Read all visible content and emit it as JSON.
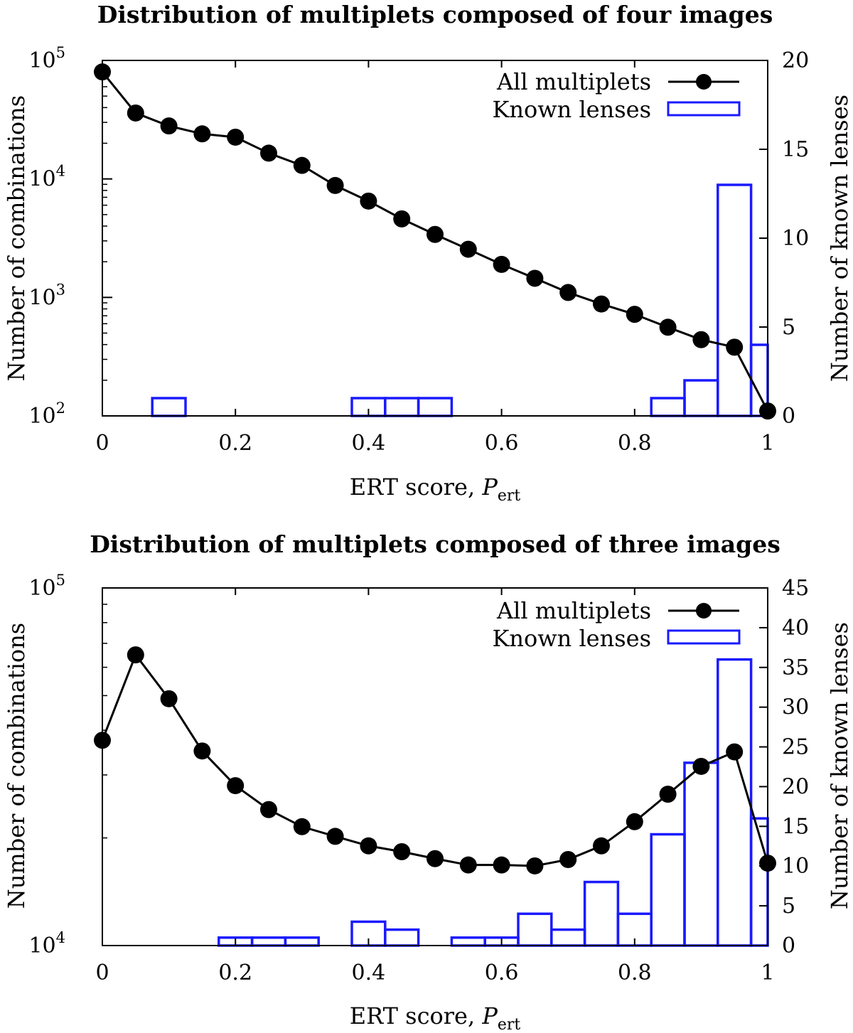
{
  "chart_data": [
    {
      "type": "line",
      "title": "Distribution of multiplets composed of four images",
      "xlabel": "ERT score, ",
      "xlabel_var": "P",
      "xlabel_sub": "ert",
      "ylabel": "Number of combinations",
      "y2label": "Number of known lenses",
      "x_ticks": [
        "0",
        "0.2",
        "0.4",
        "0.6",
        "0.8",
        "1"
      ],
      "y_ticks": [
        {
          "base": "10",
          "exp": "2"
        },
        {
          "base": "10",
          "exp": "3"
        },
        {
          "base": "10",
          "exp": "4"
        },
        {
          "base": "10",
          "exp": "5"
        }
      ],
      "y2_ticks": [
        "0",
        "5",
        "10",
        "15",
        "20"
      ],
      "xlim": [
        0,
        1
      ],
      "ylim": [
        100,
        100000
      ],
      "yscale": "log",
      "y2lim": [
        0,
        20
      ],
      "legend": {
        "placement": "top-right",
        "line_label": "All multiplets",
        "bar_label": "Known lenses"
      },
      "colors": {
        "line": "#000000",
        "bars": "#1a1aff"
      },
      "series": [
        {
          "name": "All multiplets",
          "kind": "line-points",
          "axis": "left",
          "x": [
            0,
            0.05,
            0.1,
            0.15,
            0.2,
            0.25,
            0.3,
            0.35,
            0.4,
            0.45,
            0.5,
            0.55,
            0.6,
            0.65,
            0.7,
            0.75,
            0.8,
            0.85,
            0.9,
            0.95,
            1.0
          ],
          "values": [
            80000,
            36000,
            28000,
            24000,
            22500,
            16500,
            13000,
            8800,
            6500,
            4600,
            3400,
            2550,
            1900,
            1450,
            1100,
            880,
            720,
            560,
            440,
            380,
            110
          ]
        },
        {
          "name": "Known lenses",
          "kind": "histogram",
          "axis": "right",
          "bin_width": 0.05,
          "x": [
            0.1,
            0.4,
            0.45,
            0.5,
            0.85,
            0.9,
            0.95,
            1.0
          ],
          "values": [
            1,
            1,
            1,
            1,
            1,
            2,
            13,
            4
          ]
        }
      ]
    },
    {
      "type": "line",
      "title": "Distribution of multiplets composed of three images",
      "xlabel": "ERT score, ",
      "xlabel_var": "P",
      "xlabel_sub": "ert",
      "ylabel": "Number of combinations",
      "y2label": "Number of known lenses",
      "x_ticks": [
        "0",
        "0.2",
        "0.4",
        "0.6",
        "0.8",
        "1"
      ],
      "y_ticks": [
        {
          "base": "10",
          "exp": "4"
        },
        {
          "base": "10",
          "exp": "5"
        }
      ],
      "y2_ticks": [
        "0",
        "5",
        "10",
        "15",
        "20",
        "25",
        "30",
        "35",
        "40",
        "45"
      ],
      "xlim": [
        0,
        1
      ],
      "ylim": [
        10000,
        100000
      ],
      "yscale": "log",
      "y2lim": [
        0,
        45
      ],
      "legend": {
        "placement": "top-right",
        "line_label": "All multiplets",
        "bar_label": "Known lenses"
      },
      "colors": {
        "line": "#000000",
        "bars": "#1a1aff"
      },
      "series": [
        {
          "name": "All multiplets",
          "kind": "line-points",
          "axis": "left",
          "x": [
            0,
            0.05,
            0.1,
            0.15,
            0.2,
            0.25,
            0.3,
            0.35,
            0.4,
            0.45,
            0.5,
            0.55,
            0.6,
            0.65,
            0.7,
            0.75,
            0.8,
            0.85,
            0.9,
            0.95,
            1.0
          ],
          "values": [
            37500,
            65000,
            49000,
            35000,
            28000,
            24000,
            21500,
            20200,
            19000,
            18300,
            17500,
            16800,
            16800,
            16700,
            17400,
            19000,
            22200,
            26500,
            31700,
            34800,
            17000
          ]
        },
        {
          "name": "Known lenses",
          "kind": "histogram",
          "axis": "right",
          "bin_width": 0.05,
          "x": [
            0.2,
            0.25,
            0.3,
            0.4,
            0.45,
            0.55,
            0.6,
            0.65,
            0.7,
            0.75,
            0.8,
            0.85,
            0.9,
            0.95,
            1.0
          ],
          "values": [
            1,
            1,
            1,
            3,
            2,
            1,
            1,
            4,
            2,
            8,
            4,
            14,
            23,
            36,
            16
          ]
        }
      ]
    }
  ]
}
